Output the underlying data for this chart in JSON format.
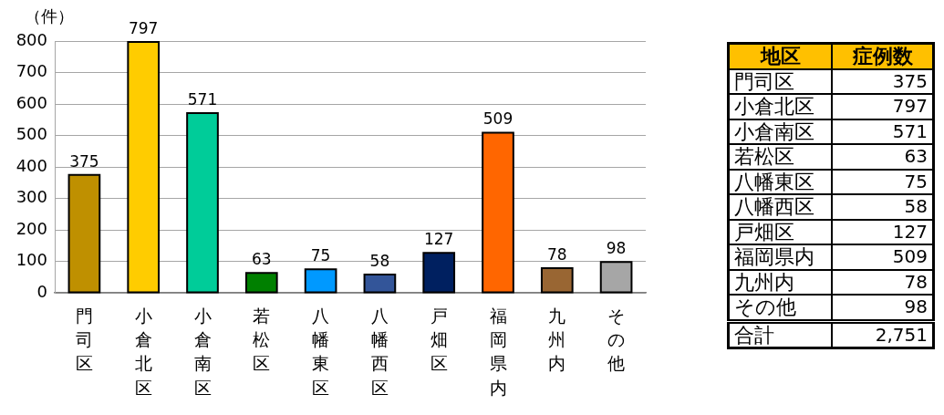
{
  "chart_data": [
    {
      "type": "bar",
      "ylabel": "（件）",
      "categories": [
        "門司区",
        "小倉北区",
        "小倉南区",
        "若松区",
        "八幡東区",
        "八幡西区",
        "戸畑区",
        "福岡県内",
        "九州内",
        "その他"
      ],
      "values": [
        375,
        797,
        571,
        63,
        75,
        58,
        127,
        509,
        78,
        98
      ],
      "colors": [
        "#bf9000",
        "#ffcc00",
        "#00cc99",
        "#008000",
        "#0099ff",
        "#335599",
        "#002060",
        "#ff6600",
        "#996633",
        "#a6a6a6"
      ],
      "ylim": [
        0,
        800
      ],
      "yticks": [
        0,
        100,
        200,
        300,
        400,
        500,
        600,
        700,
        800
      ],
      "grid": "y",
      "data_labels": true
    },
    {
      "type": "other",
      "categories": [
        "門司区",
        "小倉北区",
        "小倉南区",
        "若松区",
        "八幡東区",
        "八幡西区",
        "戸畑区",
        "福岡県内",
        "九州内",
        "その他"
      ],
      "values": [
        375,
        797,
        571,
        63,
        75,
        58,
        127,
        509,
        78,
        98
      ],
      "data_labels": true,
      "annotations": [
        "地区",
        "症例数",
        "合計",
        "2,751"
      ]
    }
  ]
}
